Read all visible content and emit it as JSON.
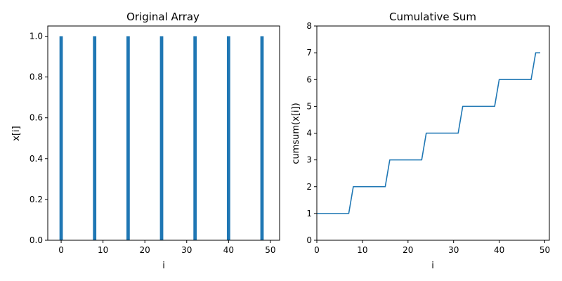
{
  "figure": {
    "background": "#ffffff",
    "series_color": "#1f77b4"
  },
  "chart_data": [
    {
      "type": "bar",
      "title": "Original Array",
      "xlabel": "i",
      "ylabel": "x[i]",
      "xlim": [
        -3.2,
        52.2
      ],
      "ylim": [
        0,
        1.05
      ],
      "xticks": [
        0,
        10,
        20,
        30,
        40,
        50
      ],
      "xtick_labels": [
        "0",
        "10",
        "20",
        "30",
        "40",
        "50"
      ],
      "yticks": [
        0,
        0.2,
        0.4,
        0.6,
        0.8,
        1.0
      ],
      "ytick_labels": [
        "0.0",
        "0.2",
        "0.4",
        "0.6",
        "0.8",
        "1.0"
      ],
      "grid": false,
      "bar_width": 0.8,
      "x": [
        0,
        8,
        16,
        24,
        32,
        40,
        48
      ],
      "values": [
        1,
        1,
        1,
        1,
        1,
        1,
        1
      ]
    },
    {
      "type": "line",
      "title": "Cumulative Sum",
      "xlabel": "i",
      "ylabel": "cumsum(x[i])",
      "xlim": [
        0,
        51
      ],
      "ylim": [
        0,
        8
      ],
      "xticks": [
        0,
        10,
        20,
        30,
        40,
        50
      ],
      "xtick_labels": [
        "0",
        "10",
        "20",
        "30",
        "40",
        "50"
      ],
      "yticks": [
        0,
        1,
        2,
        3,
        4,
        5,
        6,
        7,
        8
      ],
      "ytick_labels": [
        "0",
        "1",
        "2",
        "3",
        "4",
        "5",
        "6",
        "7",
        "8"
      ],
      "grid": false,
      "x": [
        0,
        1,
        2,
        3,
        4,
        5,
        6,
        7,
        8,
        9,
        10,
        11,
        12,
        13,
        14,
        15,
        16,
        17,
        18,
        19,
        20,
        21,
        22,
        23,
        24,
        25,
        26,
        27,
        28,
        29,
        30,
        31,
        32,
        33,
        34,
        35,
        36,
        37,
        38,
        39,
        40,
        41,
        42,
        43,
        44,
        45,
        46,
        47,
        48,
        49
      ],
      "y": [
        1,
        1,
        1,
        1,
        1,
        1,
        1,
        1,
        2,
        2,
        2,
        2,
        2,
        2,
        2,
        2,
        3,
        3,
        3,
        3,
        3,
        3,
        3,
        3,
        4,
        4,
        4,
        4,
        4,
        4,
        4,
        4,
        5,
        5,
        5,
        5,
        5,
        5,
        5,
        5,
        6,
        6,
        6,
        6,
        6,
        6,
        6,
        6,
        7,
        7
      ]
    }
  ]
}
